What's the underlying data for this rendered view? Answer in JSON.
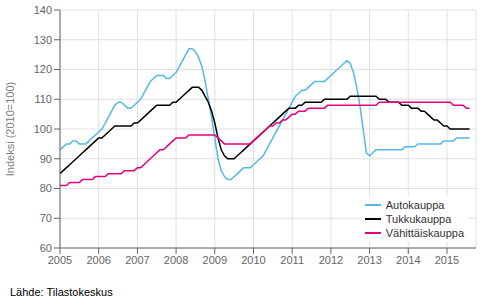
{
  "chart_data": {
    "type": "line",
    "title": "",
    "ylabel": "Indeksi (2010=100)",
    "annotations": [
      "Lähde: Tilastokeskus"
    ],
    "grid": true,
    "legend": "lower right",
    "xlim": [
      2005.0,
      2015.75
    ],
    "xticks": [
      2005,
      2006,
      2007,
      2008,
      2009,
      2010,
      2011,
      2012,
      2013,
      2014,
      2015
    ],
    "ylim": [
      60,
      140
    ],
    "yticks": [
      60,
      70,
      80,
      90,
      100,
      110,
      120,
      130,
      140
    ],
    "x": [
      2005.0,
      2005.083,
      2005.167,
      2005.25,
      2005.333,
      2005.417,
      2005.5,
      2005.583,
      2005.667,
      2005.75,
      2005.833,
      2005.917,
      2006.0,
      2006.083,
      2006.167,
      2006.25,
      2006.333,
      2006.417,
      2006.5,
      2006.583,
      2006.667,
      2006.75,
      2006.833,
      2006.917,
      2007.0,
      2007.083,
      2007.167,
      2007.25,
      2007.333,
      2007.417,
      2007.5,
      2007.583,
      2007.667,
      2007.75,
      2007.833,
      2007.917,
      2008.0,
      2008.083,
      2008.167,
      2008.25,
      2008.333,
      2008.417,
      2008.5,
      2008.583,
      2008.667,
      2008.75,
      2008.833,
      2008.917,
      2009.0,
      2009.083,
      2009.167,
      2009.25,
      2009.333,
      2009.417,
      2009.5,
      2009.583,
      2009.667,
      2009.75,
      2009.833,
      2009.917,
      2010.0,
      2010.083,
      2010.167,
      2010.25,
      2010.333,
      2010.417,
      2010.5,
      2010.583,
      2010.667,
      2010.75,
      2010.833,
      2010.917,
      2011.0,
      2011.083,
      2011.167,
      2011.25,
      2011.333,
      2011.417,
      2011.5,
      2011.583,
      2011.667,
      2011.75,
      2011.833,
      2011.917,
      2012.0,
      2012.083,
      2012.167,
      2012.25,
      2012.333,
      2012.417,
      2012.5,
      2012.583,
      2012.667,
      2012.75,
      2012.833,
      2012.917,
      2013.0,
      2013.083,
      2013.167,
      2013.25,
      2013.333,
      2013.417,
      2013.5,
      2013.583,
      2013.667,
      2013.75,
      2013.833,
      2013.917,
      2014.0,
      2014.083,
      2014.167,
      2014.25,
      2014.333,
      2014.417,
      2014.5,
      2014.583,
      2014.667,
      2014.75,
      2014.833,
      2014.917,
      2015.0,
      2015.083,
      2015.167,
      2015.25,
      2015.333,
      2015.417,
      2015.5,
      2015.583
    ],
    "series": [
      {
        "name": "Autokauppa",
        "color": "#55b8e8",
        "values": [
          93,
          94,
          95,
          95,
          96,
          96,
          95,
          95,
          95,
          96,
          97,
          98,
          99,
          100,
          102,
          104,
          106,
          108,
          109,
          109,
          108,
          107,
          107,
          108,
          109,
          110,
          112,
          114,
          116,
          117,
          118,
          118,
          118,
          117,
          117,
          118,
          119,
          121,
          123,
          125,
          127,
          127,
          126,
          124,
          121,
          116,
          110,
          104,
          97,
          90,
          86,
          84,
          83,
          83,
          84,
          85,
          86,
          87,
          87,
          87,
          88,
          89,
          90,
          91,
          93,
          95,
          97,
          99,
          101,
          103,
          105,
          107,
          109,
          111,
          112,
          113,
          113,
          114,
          115,
          116,
          116,
          116,
          116,
          117,
          118,
          119,
          120,
          121,
          122,
          123,
          122,
          119,
          114,
          108,
          100,
          92,
          91,
          92,
          93,
          93,
          93,
          93,
          93,
          93,
          93,
          93,
          93,
          94,
          94,
          94,
          94,
          95,
          95,
          95,
          95,
          95,
          95,
          95,
          95,
          96,
          96,
          96,
          96,
          97,
          97,
          97,
          97,
          97
        ]
      },
      {
        "name": "Tukkukauppa",
        "color": "#000000",
        "values": [
          85,
          86,
          87,
          88,
          89,
          90,
          91,
          92,
          93,
          94,
          95,
          96,
          97,
          97,
          98,
          99,
          100,
          101,
          101,
          101,
          101,
          101,
          101,
          102,
          102,
          103,
          104,
          105,
          106,
          107,
          108,
          108,
          108,
          108,
          108,
          109,
          109,
          110,
          111,
          112,
          113,
          114,
          114,
          114,
          113,
          111,
          109,
          106,
          102,
          97,
          93,
          91,
          90,
          90,
          90,
          91,
          92,
          93,
          94,
          95,
          96,
          97,
          98,
          99,
          100,
          101,
          102,
          103,
          104,
          105,
          106,
          107,
          107,
          107,
          108,
          108,
          109,
          109,
          109,
          109,
          109,
          109,
          110,
          110,
          110,
          110,
          110,
          110,
          110,
          110,
          111,
          111,
          111,
          111,
          111,
          111,
          111,
          111,
          111,
          110,
          110,
          110,
          109,
          109,
          109,
          109,
          108,
          108,
          108,
          107,
          107,
          107,
          106,
          106,
          105,
          104,
          103,
          103,
          102,
          101,
          101,
          100,
          100,
          100,
          100,
          100,
          100,
          100
        ]
      },
      {
        "name": "Vähittäiskauppa",
        "color": "#e6007e",
        "values": [
          81,
          81,
          81,
          82,
          82,
          82,
          82,
          83,
          83,
          83,
          83,
          84,
          84,
          84,
          84,
          85,
          85,
          85,
          85,
          85,
          86,
          86,
          86,
          86,
          87,
          87,
          88,
          89,
          90,
          91,
          92,
          93,
          93,
          94,
          95,
          96,
          97,
          97,
          97,
          97,
          98,
          98,
          98,
          98,
          98,
          98,
          98,
          98,
          98,
          97,
          96,
          95,
          95,
          95,
          95,
          95,
          95,
          95,
          95,
          95,
          96,
          97,
          98,
          99,
          100,
          101,
          101,
          102,
          102,
          103,
          103,
          104,
          105,
          105,
          106,
          106,
          106,
          107,
          107,
          107,
          107,
          107,
          107,
          108,
          108,
          108,
          108,
          108,
          108,
          108,
          108,
          108,
          108,
          108,
          108,
          108,
          108,
          108,
          108,
          109,
          109,
          109,
          109,
          109,
          109,
          109,
          109,
          109,
          109,
          109,
          109,
          109,
          109,
          109,
          109,
          109,
          109,
          109,
          109,
          109,
          109,
          109,
          108,
          108,
          108,
          108,
          107,
          107
        ]
      }
    ]
  }
}
